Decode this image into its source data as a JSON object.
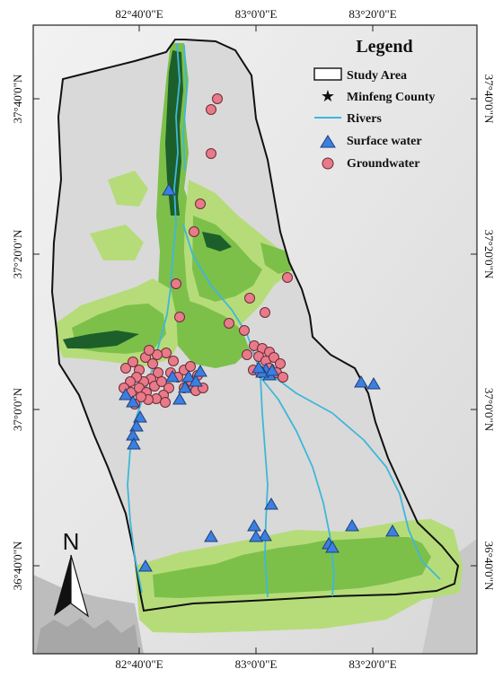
{
  "map": {
    "top_ticks": [
      "82°40'0\"E",
      "83°0'0\"E",
      "83°20'0\"E"
    ],
    "bottom_ticks": [
      "82°40'0\"E",
      "83°0'0\"E",
      "83°20'0\"E"
    ],
    "left_ticks": [
      "37°40'0\"N",
      "37°20'0\"N",
      "37°0'0\"N",
      "36°40'0\"N"
    ],
    "right_ticks": [
      "37°40'0\"N",
      "37°20'0\"N",
      "37°0'0\"N",
      "36°40'0\"N"
    ],
    "north_label": "N"
  },
  "legend": {
    "title": "Legend",
    "items": [
      {
        "label": "Study Area",
        "symbol": "box"
      },
      {
        "label": "Minfeng County",
        "symbol": "star"
      },
      {
        "label": "Rivers",
        "symbol": "line"
      },
      {
        "label": "Surface water",
        "symbol": "triangle"
      },
      {
        "label": "Groundwater",
        "symbol": "circle"
      }
    ]
  },
  "colors": {
    "study_area": "#d9d9d9",
    "river": "#3fb7d9",
    "surface_water": "#3b7fe0",
    "groundwater": "#e97a8a",
    "veg_light": "#b6dc7a",
    "veg_mid": "#7cc04a",
    "veg_dark": "#1d5f2a"
  }
}
